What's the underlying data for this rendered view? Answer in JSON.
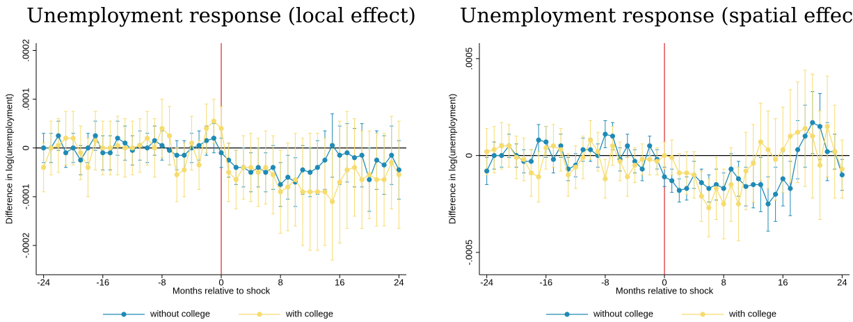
{
  "chart_data": [
    {
      "type": "line",
      "title": "Unemployment response (local effect)",
      "x_label": "Months relative to shock",
      "y_label": "Difference in log(unemployment)",
      "x": [
        -24,
        -23,
        -22,
        -21,
        -20,
        -19,
        -18,
        -17,
        -16,
        -15,
        -14,
        -13,
        -12,
        -11,
        -10,
        -9,
        -8,
        -7,
        -6,
        -5,
        -4,
        -3,
        -2,
        -1,
        0,
        1,
        2,
        3,
        4,
        5,
        6,
        7,
        8,
        9,
        10,
        11,
        12,
        13,
        14,
        15,
        16,
        17,
        18,
        19,
        20,
        21,
        22,
        23,
        24
      ],
      "xlim": [
        -25,
        25
      ],
      "xticks": [
        -24,
        -16,
        -8,
        0,
        8,
        16,
        24
      ],
      "ylim": [
        -0.00026,
        0.000215
      ],
      "yticks": [
        {
          "value": -0.0002,
          "label": "-.0002"
        },
        {
          "value": -0.0001,
          "label": "-.0001"
        },
        0,
        {
          "value": 0.0001,
          "label": ".0001"
        },
        {
          "value": 0.0002,
          "label": ".0002"
        }
      ],
      "reference_lines": {
        "y": 0,
        "x": 0,
        "x_color": "#d62728"
      },
      "series": [
        {
          "name": "without college",
          "color": "#1f8ab5",
          "values": [
            0,
            0,
            2.5e-05,
            -1e-05,
            0,
            -2.5e-05,
            0,
            2.5e-05,
            -1e-05,
            -1e-05,
            2e-05,
            1e-05,
            -5e-06,
            5e-06,
            0,
            1.5e-05,
            5e-06,
            -5e-06,
            -1.5e-05,
            -1.5e-05,
            0,
            5e-06,
            1.5e-05,
            2e-05,
            -1e-05,
            -2.5e-05,
            -4e-05,
            -4e-05,
            -5e-05,
            -4e-05,
            -5e-05,
            -4e-05,
            -7.5e-05,
            -6e-05,
            -7e-05,
            -4.5e-05,
            -5e-05,
            -4e-05,
            -2.5e-05,
            5e-06,
            -1.5e-05,
            -1e-05,
            -2e-05,
            -1.5e-05,
            -6.5e-05,
            -2.5e-05,
            -3.5e-05,
            -1.5e-05,
            -4.5e-05
          ],
          "errors": [
            3e-05,
            3e-05,
            3e-05,
            3e-05,
            3e-05,
            3e-05,
            3e-05,
            3e-05,
            3.5e-05,
            3.5e-05,
            3.5e-05,
            3.5e-05,
            3e-05,
            3e-05,
            3e-05,
            3e-05,
            3e-05,
            3e-05,
            3e-05,
            3e-05,
            3e-05,
            3e-05,
            3e-05,
            3e-05,
            3e-05,
            3.5e-05,
            3.5e-05,
            4e-05,
            4e-05,
            4e-05,
            4e-05,
            4.5e-05,
            4.5e-05,
            4.5e-05,
            5e-05,
            5e-05,
            5e-05,
            5.5e-05,
            6e-05,
            6.5e-05,
            6e-05,
            6e-05,
            6e-05,
            6.5e-05,
            6.5e-05,
            6e-05,
            6e-05,
            6e-05,
            6e-05
          ]
        },
        {
          "name": "with college",
          "color": "#f6dc6e",
          "values": [
            -4e-05,
            0,
            5e-06,
            2e-05,
            2e-05,
            -1e-05,
            -4e-05,
            1.5e-05,
            0,
            0,
            5e-06,
            0,
            0,
            5e-06,
            2e-05,
            0,
            4e-05,
            2.5e-05,
            -5.5e-05,
            -4.5e-05,
            1e-05,
            -3.5e-05,
            4e-05,
            5.5e-05,
            4e-05,
            -5e-05,
            -6.5e-05,
            -4e-05,
            -4e-05,
            -5e-05,
            -4e-05,
            -5.5e-05,
            -9e-05,
            -8e-05,
            -6.5e-05,
            -9e-05,
            -9e-05,
            -9e-05,
            -9e-05,
            -0.00011,
            -7e-05,
            -4.5e-05,
            -4e-05,
            -6.5e-05,
            -5.5e-05,
            -6.5e-05,
            -6.5e-05,
            -3e-05,
            -5.5e-05
          ],
          "errors": [
            5e-05,
            5.5e-05,
            5.5e-05,
            5.5e-05,
            5.5e-05,
            5.5e-05,
            6e-05,
            6e-05,
            5.5e-05,
            5.5e-05,
            6e-05,
            6e-05,
            5.5e-05,
            5.5e-05,
            5.5e-05,
            6e-05,
            6e-05,
            6e-05,
            5.5e-05,
            5.5e-05,
            5.5e-05,
            5e-05,
            5e-05,
            4.5e-05,
            4.5e-05,
            6e-05,
            6e-05,
            6.5e-05,
            7e-05,
            7e-05,
            7.5e-05,
            8e-05,
            8.5e-05,
            9e-05,
            9.5e-05,
            0.00011,
            0.00012,
            0.00012,
            0.00011,
            0.00012,
            0.000125,
            0.00012,
            0.0001,
            0.0001,
            9e-05,
            9.5e-05,
            9.5e-05,
            9.5e-05,
            0.00011
          ]
        }
      ]
    },
    {
      "type": "line",
      "title": "Unemployment response (spatial effect)",
      "x_label": "Months relative to shock",
      "y_label": "Difference in log(unemployment)",
      "x": [
        -24,
        -23,
        -22,
        -21,
        -20,
        -19,
        -18,
        -17,
        -16,
        -15,
        -14,
        -13,
        -12,
        -11,
        -10,
        -9,
        -8,
        -7,
        -6,
        -5,
        -4,
        -3,
        -2,
        -1,
        0,
        1,
        2,
        3,
        4,
        5,
        6,
        7,
        8,
        9,
        10,
        11,
        12,
        13,
        14,
        15,
        16,
        17,
        18,
        19,
        20,
        21,
        22,
        23,
        24
      ],
      "xlim": [
        -25,
        25
      ],
      "xticks": [
        -24,
        -16,
        -8,
        0,
        8,
        16,
        24
      ],
      "ylim": [
        -0.000615,
        0.00058
      ],
      "yticks": [
        {
          "value": -0.0005,
          "label": "-.0005"
        },
        0,
        {
          "value": 0.0005,
          "label": ".0005"
        }
      ],
      "reference_lines": {
        "y": 0,
        "x": 0,
        "x_color": "#d62728"
      },
      "series": [
        {
          "name": "without college",
          "color": "#1f8ab5",
          "values": [
            -8e-05,
            0,
            0,
            5e-05,
            0,
            -3e-05,
            -3e-05,
            8e-05,
            7e-05,
            -2e-05,
            5e-05,
            -7e-05,
            -5e-05,
            3e-05,
            3e-05,
            0,
            0.00011,
            0.0001,
            -2e-05,
            5e-05,
            -3e-05,
            -7e-05,
            5e-05,
            -2e-05,
            -0.00011,
            -0.00013,
            -0.00018,
            -0.00017,
            -0.0001,
            -0.00014,
            -0.00017,
            -0.00015,
            -0.00017,
            -7e-05,
            -0.00012,
            -0.00016,
            -0.00015,
            -0.00015,
            -0.00025,
            -0.0002,
            -0.00012,
            -0.00017,
            3e-05,
            0.0001,
            0.00017,
            0.00015,
            2e-05,
            2e-05,
            -0.0001
          ],
          "errors": [
            7e-05,
            7e-05,
            6e-05,
            6e-05,
            6e-05,
            6e-05,
            6e-05,
            8e-05,
            8e-05,
            7e-05,
            6e-05,
            6e-05,
            6e-05,
            6e-05,
            6e-05,
            6e-05,
            7e-05,
            7e-05,
            6e-05,
            6e-05,
            6e-05,
            6e-05,
            5e-05,
            5e-05,
            5e-05,
            6e-05,
            6e-05,
            6e-05,
            7e-05,
            7e-05,
            7e-05,
            8e-05,
            8e-05,
            8e-05,
            9e-05,
            0.0001,
            0.00012,
            0.00014,
            0.00014,
            0.00014,
            0.00014,
            0.00014,
            0.00015,
            0.00016,
            0.00016,
            0.00017,
            0.00015,
            9e-05,
            8e-05
          ]
        },
        {
          "name": "with college",
          "color": "#f6dc6e",
          "values": [
            2e-05,
            3e-05,
            5e-05,
            5e-05,
            -1e-05,
            -2e-05,
            -9e-05,
            -0.00011,
            4e-05,
            5e-05,
            3e-05,
            -0.0001,
            -6e-05,
            -1e-05,
            8e-05,
            2e-05,
            -0.00012,
            5e-05,
            -3e-05,
            -0.00011,
            -5e-05,
            -2e-05,
            -2e-05,
            -3e-05,
            0,
            -1e-05,
            -9e-05,
            -9e-05,
            -0.0001,
            -0.00021,
            -0.00027,
            -0.00017,
            -0.00025,
            -0.00015,
            -0.00025,
            -8e-05,
            -4e-05,
            7e-05,
            3e-05,
            -2e-05,
            3e-05,
            0.0001,
            0.00012,
            0.00014,
            0.0001,
            -5e-05,
            0.00015,
            2e-05,
            -7e-05
          ],
          "errors": [
            0.00012,
            0.00012,
            0.00012,
            0.00011,
            0.00011,
            0.00011,
            0.00012,
            0.00013,
            0.00011,
            0.00011,
            0.00011,
            0.00011,
            0.00011,
            0.00011,
            0.0001,
            0.0001,
            0.0001,
            0.0001,
            0.0001,
            0.0001,
            9e-05,
            8e-05,
            8e-05,
            7e-05,
            7e-05,
            9e-05,
            0.0001,
            0.00011,
            0.00012,
            0.00013,
            0.00015,
            0.00016,
            0.00018,
            0.00019,
            0.00019,
            0.0002,
            0.0002,
            0.0002,
            0.0002,
            0.00021,
            0.00022,
            0.00024,
            0.00026,
            0.0003,
            0.00032,
            0.00028,
            0.00026,
            0.00024,
            0.00015
          ]
        }
      ]
    }
  ]
}
